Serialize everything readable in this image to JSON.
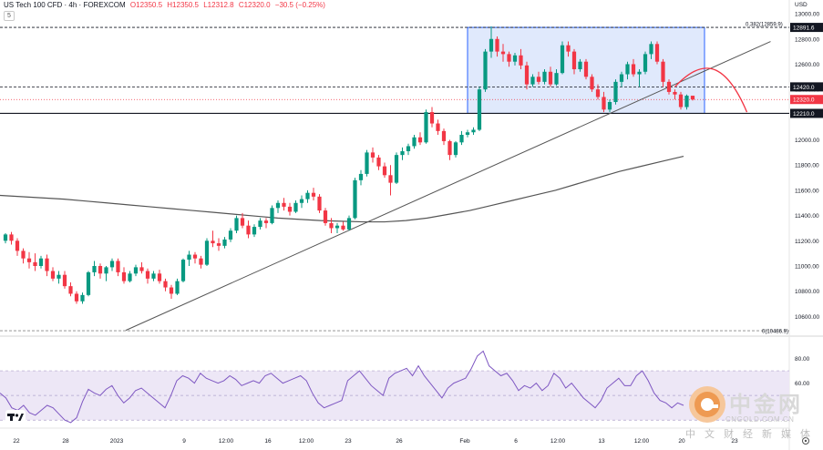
{
  "header": {
    "symbol": "US Tech 100 CFD · 4h · FOREXCOM",
    "open": "O12350.5",
    "high": "H12350.5",
    "low": "L12312.8",
    "close": "C12320.0",
    "change": "−30.5 (−0.25%)",
    "sub_value": "5",
    "currency": "USD"
  },
  "colors": {
    "up": "#089981",
    "down": "#f23645",
    "box_fill": "#dbe5fb",
    "box_border": "#2962ff",
    "ma": "#555555",
    "rsi": "#7e57c2",
    "rsi_band": "#ede7f6",
    "projection": "#f23645"
  },
  "chart_data": [
    {
      "type": "candlestick",
      "timeframe": "4h",
      "y_axis_ticks": [
        13000,
        12800,
        12600,
        12400,
        12200,
        12000,
        11800,
        11600,
        11400,
        11200,
        11000,
        10800,
        10600
      ],
      "ylim": [
        10480,
        13080
      ],
      "x_axis_ticks": [
        "22",
        "28",
        "2023",
        "9",
        "12:00",
        "16",
        "12:00",
        "23",
        "26",
        "Feb",
        "6",
        "12:00",
        "13",
        "12:00",
        "20",
        "23"
      ],
      "ohlc": [
        [
          11200,
          11260,
          11180,
          11250
        ],
        [
          11250,
          11270,
          11170,
          11200
        ],
        [
          11200,
          11220,
          11080,
          11120
        ],
        [
          11120,
          11140,
          11020,
          11060
        ],
        [
          11060,
          11110,
          10980,
          11030
        ],
        [
          11030,
          11100,
          10960,
          11000
        ],
        [
          11000,
          11080,
          10980,
          11060
        ],
        [
          11060,
          11090,
          10920,
          10960
        ],
        [
          10960,
          10990,
          10880,
          10900
        ],
        [
          10900,
          10960,
          10860,
          10930
        ],
        [
          10930,
          10960,
          10820,
          10840
        ],
        [
          10840,
          10870,
          10760,
          10780
        ],
        [
          10780,
          10800,
          10700,
          10720
        ],
        [
          10720,
          10790,
          10700,
          10770
        ],
        [
          10770,
          10960,
          10760,
          10950
        ],
        [
          10950,
          11040,
          10920,
          11000
        ],
        [
          11000,
          11020,
          10900,
          10940
        ],
        [
          10940,
          11000,
          10880,
          10990
        ],
        [
          10990,
          11060,
          10960,
          11040
        ],
        [
          11040,
          11060,
          10920,
          10950
        ],
        [
          10950,
          10990,
          10860,
          10880
        ],
        [
          10880,
          10960,
          10870,
          10940
        ],
        [
          10940,
          11010,
          10920,
          10990
        ],
        [
          10990,
          11030,
          10940,
          10960
        ],
        [
          10960,
          10980,
          10860,
          10900
        ],
        [
          10900,
          10960,
          10880,
          10940
        ],
        [
          10940,
          10970,
          10860,
          10880
        ],
        [
          10880,
          10900,
          10800,
          10830
        ],
        [
          10830,
          10850,
          10740,
          10780
        ],
        [
          10780,
          10900,
          10770,
          10880
        ],
        [
          10880,
          11060,
          10870,
          11050
        ],
        [
          11050,
          11120,
          11000,
          11090
        ],
        [
          11090,
          11110,
          11020,
          11060
        ],
        [
          11060,
          11080,
          10980,
          11010
        ],
        [
          11010,
          11220,
          11000,
          11200
        ],
        [
          11200,
          11280,
          11150,
          11180
        ],
        [
          11180,
          11220,
          11120,
          11160
        ],
        [
          11160,
          11230,
          11140,
          11210
        ],
        [
          11210,
          11300,
          11190,
          11280
        ],
        [
          11280,
          11400,
          11260,
          11380
        ],
        [
          11380,
          11420,
          11300,
          11320
        ],
        [
          11320,
          11360,
          11220,
          11250
        ],
        [
          11250,
          11330,
          11230,
          11310
        ],
        [
          11310,
          11380,
          11290,
          11360
        ],
        [
          11360,
          11380,
          11300,
          11340
        ],
        [
          11340,
          11480,
          11330,
          11460
        ],
        [
          11460,
          11520,
          11420,
          11500
        ],
        [
          11500,
          11540,
          11440,
          11470
        ],
        [
          11470,
          11500,
          11400,
          11430
        ],
        [
          11430,
          11520,
          11420,
          11500
        ],
        [
          11500,
          11560,
          11460,
          11530
        ],
        [
          11530,
          11600,
          11500,
          11580
        ],
        [
          11580,
          11620,
          11520,
          11550
        ],
        [
          11550,
          11570,
          11420,
          11440
        ],
        [
          11440,
          11460,
          11320,
          11340
        ],
        [
          11340,
          11380,
          11260,
          11300
        ],
        [
          11300,
          11340,
          11260,
          11320
        ],
        [
          11320,
          11350,
          11280,
          11290
        ],
        [
          11290,
          11400,
          11280,
          11380
        ],
        [
          11380,
          11700,
          11370,
          11680
        ],
        [
          11680,
          11760,
          11640,
          11730
        ],
        [
          11730,
          11920,
          11710,
          11900
        ],
        [
          11900,
          11940,
          11820,
          11860
        ],
        [
          11860,
          11880,
          11760,
          11790
        ],
        [
          11790,
          11820,
          11700,
          11720
        ],
        [
          11720,
          11800,
          11560,
          11660
        ],
        [
          11660,
          11900,
          11650,
          11880
        ],
        [
          11880,
          11940,
          11840,
          11910
        ],
        [
          11910,
          11970,
          11880,
          11950
        ],
        [
          11950,
          12040,
          11930,
          12020
        ],
        [
          12020,
          12060,
          11960,
          11980
        ],
        [
          11980,
          12240,
          11970,
          12220
        ],
        [
          12220,
          12260,
          12100,
          12130
        ],
        [
          12130,
          12160,
          12040,
          12070
        ],
        [
          12070,
          12090,
          11960,
          11990
        ],
        [
          11990,
          12000,
          11840,
          11880
        ],
        [
          11880,
          11990,
          11860,
          11980
        ],
        [
          11980,
          12070,
          11960,
          12040
        ],
        [
          12040,
          12080,
          12020,
          12060
        ],
        [
          12060,
          12100,
          12040,
          12080
        ],
        [
          12080,
          12420,
          12070,
          12400
        ],
        [
          12400,
          12720,
          12380,
          12700
        ],
        [
          12700,
          12900,
          12650,
          12800
        ],
        [
          12800,
          12820,
          12660,
          12700
        ],
        [
          12700,
          12760,
          12620,
          12680
        ],
        [
          12680,
          12700,
          12580,
          12620
        ],
        [
          12620,
          12690,
          12590,
          12670
        ],
        [
          12670,
          12720,
          12560,
          12590
        ],
        [
          12590,
          12620,
          12400,
          12440
        ],
        [
          12440,
          12520,
          12420,
          12500
        ],
        [
          12500,
          12540,
          12440,
          12460
        ],
        [
          12460,
          12560,
          12440,
          12540
        ],
        [
          12540,
          12580,
          12420,
          12440
        ],
        [
          12440,
          12560,
          12430,
          12530
        ],
        [
          12530,
          12780,
          12520,
          12750
        ],
        [
          12750,
          12780,
          12660,
          12700
        ],
        [
          12700,
          12720,
          12520,
          12560
        ],
        [
          12560,
          12640,
          12540,
          12620
        ],
        [
          12620,
          12640,
          12480,
          12500
        ],
        [
          12500,
          12520,
          12380,
          12400
        ],
        [
          12400,
          12440,
          12320,
          12340
        ],
        [
          12340,
          12380,
          12220,
          12240
        ],
        [
          12240,
          12320,
          12220,
          12300
        ],
        [
          12300,
          12480,
          12280,
          12460
        ],
        [
          12460,
          12540,
          12420,
          12520
        ],
        [
          12520,
          12620,
          12480,
          12600
        ],
        [
          12600,
          12640,
          12500,
          12520
        ],
        [
          12520,
          12560,
          12420,
          12540
        ],
        [
          12540,
          12700,
          12520,
          12680
        ],
        [
          12680,
          12780,
          12640,
          12760
        ],
        [
          12760,
          12780,
          12600,
          12620
        ],
        [
          12620,
          12640,
          12420,
          12460
        ],
        [
          12460,
          12480,
          12360,
          12380
        ],
        [
          12380,
          12400,
          12320,
          12360
        ],
        [
          12360,
          12380,
          12240,
          12260
        ],
        [
          12260,
          12360,
          12240,
          12350
        ],
        [
          12350,
          12350,
          12312,
          12320
        ]
      ],
      "moving_average": [
        11560,
        11550,
        11540,
        11530,
        11515,
        11500,
        11485,
        11470,
        11455,
        11440,
        11425,
        11410,
        11395,
        11380,
        11370,
        11360,
        11355,
        11350,
        11350,
        11360,
        11380,
        11410,
        11440,
        11480,
        11520,
        11560,
        11600,
        11650,
        11700,
        11750,
        11790,
        11830,
        11870
      ],
      "horizontal_levels": [
        {
          "value": 12891.6,
          "label": "12891.6",
          "style": "dashed",
          "color": "#131722"
        },
        {
          "value": 12420.0,
          "label": "12420.0",
          "style": "dashed",
          "color": "#131722"
        },
        {
          "value": 12320.0,
          "label": "12320.0",
          "style": "dotted",
          "color": "#f23645"
        },
        {
          "value": 12210.0,
          "label": "12210.0",
          "style": "solid",
          "color": "#131722"
        },
        {
          "value": 10486.9,
          "label": "0(10486.9)",
          "style": "dashed",
          "color": "#888888"
        }
      ],
      "fib_labels": [
        {
          "text": "0.382(12859.9)",
          "value": 12891.6
        },
        {
          "text": "0(10486.9)",
          "value": 10486.9
        }
      ],
      "trendline": {
        "from": {
          "bar": 20,
          "value": 10490
        },
        "to": {
          "bar": 119,
          "value": 12780
        }
      },
      "rectangle": {
        "from_bar": 78,
        "to_bar": 118,
        "top": 12891.6,
        "bottom": 12210.0
      },
      "projection_arc": {
        "from_bar": 113,
        "to_bar": 119,
        "values": [
          12420,
          12480,
          12380,
          12220
        ]
      }
    },
    {
      "type": "line",
      "name": "RSI",
      "y_axis_ticks": [
        80.0,
        60.0
      ],
      "ylim": [
        25,
        90
      ],
      "band": [
        30,
        70
      ],
      "midline": 50,
      "values": [
        52,
        48,
        40,
        38,
        42,
        36,
        34,
        38,
        42,
        40,
        35,
        30,
        28,
        32,
        45,
        55,
        52,
        50,
        55,
        58,
        50,
        44,
        48,
        54,
        56,
        52,
        48,
        44,
        40,
        50,
        62,
        66,
        64,
        60,
        68,
        64,
        62,
        60,
        62,
        66,
        63,
        58,
        60,
        62,
        60,
        66,
        68,
        64,
        60,
        62,
        64,
        66,
        62,
        52,
        44,
        40,
        42,
        44,
        46,
        62,
        66,
        70,
        64,
        58,
        54,
        50,
        64,
        68,
        70,
        72,
        66,
        74,
        66,
        60,
        54,
        48,
        56,
        60,
        62,
        64,
        72,
        82,
        86,
        74,
        70,
        66,
        68,
        62,
        54,
        58,
        56,
        60,
        54,
        58,
        68,
        64,
        56,
        60,
        54,
        48,
        44,
        40,
        46,
        56,
        60,
        64,
        58,
        58,
        66,
        70,
        62,
        52,
        46,
        44,
        40,
        44,
        42
      ]
    }
  ],
  "watermark": {
    "brand": "中金网",
    "url": "CNGOLD.COM.CN",
    "subtitle": "中文财经新媒体"
  }
}
